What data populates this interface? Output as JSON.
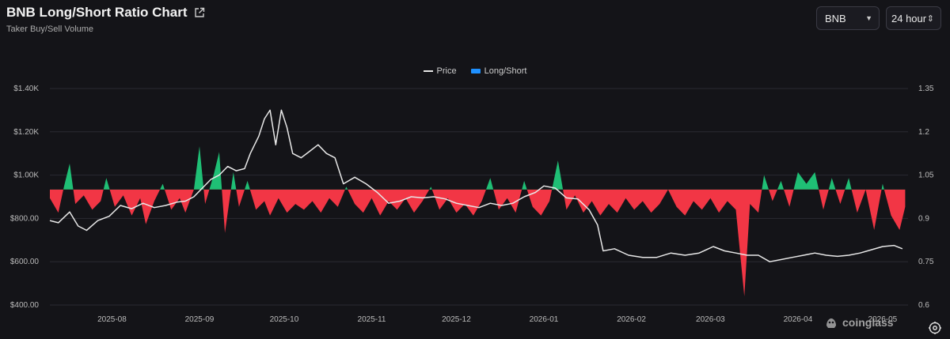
{
  "header": {
    "title": "BNB Long/Short Ratio Chart",
    "subtitle": "Taker Buy/Sell Volume",
    "symbol_select": "BNB",
    "interval_select": "24 hour"
  },
  "watermark": "coinglass",
  "icons": [
    "external-link-icon",
    "dropdown-caret-icon",
    "stepper-icon",
    "coinglass-logo-icon",
    "settings-icon"
  ],
  "colors": {
    "positive": "#1fbf75",
    "negative": "#f23645",
    "price": "#e8e8e8",
    "legend_ratio": "#1e90ff"
  },
  "chart_data": {
    "type": "area",
    "legend": [
      "Price",
      "Long/Short"
    ],
    "x_labels": [
      "2025-08",
      "2025-09",
      "2025-10",
      "2025-11",
      "2025-12",
      "2026-01",
      "2026-02",
      "2026-03",
      "2026-04",
      "2026-05"
    ],
    "y_left_labels": [
      "$1.40K",
      "$1.20K",
      "$1.00K",
      "$800.00",
      "$600.00",
      "$400.00"
    ],
    "y_right_labels": [
      "1.35",
      "1.2",
      "1.05",
      "0.9",
      "0.75",
      "0.6"
    ],
    "y_left_range": [
      400,
      1400
    ],
    "y_right_range": [
      0.6,
      1.35
    ],
    "ratio_baseline": 1.0,
    "x_range": [
      "2025-07-24",
      "2026-05-24"
    ],
    "series": [
      {
        "name": "Price",
        "points": [
          [
            "2025-07-24",
            790
          ],
          [
            "2025-07-27",
            780
          ],
          [
            "2025-07-31",
            830
          ],
          [
            "2025-08-03",
            765
          ],
          [
            "2025-08-06",
            745
          ],
          [
            "2025-08-10",
            790
          ],
          [
            "2025-08-14",
            810
          ],
          [
            "2025-08-18",
            860
          ],
          [
            "2025-08-22",
            845
          ],
          [
            "2025-08-26",
            870
          ],
          [
            "2025-08-30",
            850
          ],
          [
            "2025-09-03",
            860
          ],
          [
            "2025-09-07",
            875
          ],
          [
            "2025-09-10",
            880
          ],
          [
            "2025-09-13",
            900
          ],
          [
            "2025-09-16",
            940
          ],
          [
            "2025-09-19",
            980
          ],
          [
            "2025-09-22",
            1000
          ],
          [
            "2025-09-25",
            1040
          ],
          [
            "2025-09-28",
            1020
          ],
          [
            "2025-10-01",
            1030
          ],
          [
            "2025-10-03",
            1100
          ],
          [
            "2025-10-06",
            1180
          ],
          [
            "2025-10-08",
            1260
          ],
          [
            "2025-10-10",
            1300
          ],
          [
            "2025-10-12",
            1140
          ],
          [
            "2025-10-14",
            1300
          ],
          [
            "2025-10-16",
            1220
          ],
          [
            "2025-10-18",
            1100
          ],
          [
            "2025-10-21",
            1080
          ],
          [
            "2025-10-24",
            1110
          ],
          [
            "2025-10-27",
            1140
          ],
          [
            "2025-10-30",
            1100
          ],
          [
            "2025-11-02",
            1080
          ],
          [
            "2025-11-05",
            960
          ],
          [
            "2025-11-09",
            990
          ],
          [
            "2025-11-13",
            960
          ],
          [
            "2025-11-17",
            920
          ],
          [
            "2025-11-21",
            870
          ],
          [
            "2025-11-25",
            880
          ],
          [
            "2025-11-29",
            900
          ],
          [
            "2025-12-03",
            895
          ],
          [
            "2025-12-07",
            900
          ],
          [
            "2025-12-11",
            890
          ],
          [
            "2025-12-15",
            870
          ],
          [
            "2025-12-19",
            860
          ],
          [
            "2025-12-23",
            850
          ],
          [
            "2025-12-27",
            870
          ],
          [
            "2025-12-31",
            860
          ],
          [
            "2026-01-04",
            870
          ],
          [
            "2026-01-08",
            900
          ],
          [
            "2026-01-12",
            920
          ],
          [
            "2026-01-15",
            950
          ],
          [
            "2026-01-19",
            940
          ],
          [
            "2026-01-23",
            895
          ],
          [
            "2026-01-27",
            890
          ],
          [
            "2026-01-31",
            840
          ],
          [
            "2026-02-03",
            770
          ],
          [
            "2026-02-05",
            650
          ],
          [
            "2026-02-09",
            660
          ],
          [
            "2026-02-14",
            630
          ],
          [
            "2026-02-19",
            620
          ],
          [
            "2026-02-24",
            620
          ],
          [
            "2026-03-01",
            640
          ],
          [
            "2026-03-06",
            630
          ],
          [
            "2026-03-11",
            640
          ],
          [
            "2026-03-16",
            670
          ],
          [
            "2026-03-20",
            650
          ],
          [
            "2026-03-24",
            640
          ],
          [
            "2026-03-28",
            630
          ],
          [
            "2026-04-01",
            630
          ],
          [
            "2026-04-05",
            600
          ],
          [
            "2026-04-09",
            610
          ],
          [
            "2026-04-13",
            620
          ],
          [
            "2026-04-17",
            630
          ],
          [
            "2026-04-21",
            640
          ],
          [
            "2026-04-25",
            630
          ],
          [
            "2026-04-29",
            625
          ],
          [
            "2026-05-03",
            630
          ],
          [
            "2026-05-07",
            640
          ],
          [
            "2026-05-11",
            655
          ],
          [
            "2026-05-15",
            670
          ],
          [
            "2026-05-19",
            675
          ],
          [
            "2026-05-22",
            660
          ]
        ]
      },
      {
        "name": "Long/Short",
        "points": [
          [
            "2025-07-24",
            0.97
          ],
          [
            "2025-07-27",
            0.92
          ],
          [
            "2025-07-29",
            1.01
          ],
          [
            "2025-07-31",
            1.09
          ],
          [
            "2025-08-02",
            0.95
          ],
          [
            "2025-08-05",
            0.98
          ],
          [
            "2025-08-08",
            0.93
          ],
          [
            "2025-08-11",
            0.96
          ],
          [
            "2025-08-13",
            1.04
          ],
          [
            "2025-08-16",
            0.94
          ],
          [
            "2025-08-19",
            0.98
          ],
          [
            "2025-08-22",
            0.91
          ],
          [
            "2025-08-25",
            0.97
          ],
          [
            "2025-08-27",
            0.88
          ],
          [
            "2025-08-30",
            0.96
          ],
          [
            "2025-09-02",
            1.02
          ],
          [
            "2025-09-05",
            0.93
          ],
          [
            "2025-09-08",
            0.97
          ],
          [
            "2025-09-10",
            0.92
          ],
          [
            "2025-09-13",
            1.0
          ],
          [
            "2025-09-15",
            1.15
          ],
          [
            "2025-09-17",
            0.95
          ],
          [
            "2025-09-20",
            1.05
          ],
          [
            "2025-09-22",
            1.13
          ],
          [
            "2025-09-24",
            0.85
          ],
          [
            "2025-09-27",
            1.06
          ],
          [
            "2025-09-29",
            0.94
          ],
          [
            "2025-10-02",
            1.03
          ],
          [
            "2025-10-05",
            0.93
          ],
          [
            "2025-10-08",
            0.96
          ],
          [
            "2025-10-10",
            0.91
          ],
          [
            "2025-10-13",
            0.97
          ],
          [
            "2025-10-16",
            0.92
          ],
          [
            "2025-10-19",
            0.95
          ],
          [
            "2025-10-22",
            0.93
          ],
          [
            "2025-10-25",
            0.96
          ],
          [
            "2025-10-28",
            0.92
          ],
          [
            "2025-10-31",
            0.97
          ],
          [
            "2025-11-03",
            0.94
          ],
          [
            "2025-11-06",
            1.01
          ],
          [
            "2025-11-09",
            0.95
          ],
          [
            "2025-11-12",
            0.92
          ],
          [
            "2025-11-15",
            0.97
          ],
          [
            "2025-11-18",
            0.91
          ],
          [
            "2025-11-21",
            0.96
          ],
          [
            "2025-11-24",
            0.93
          ],
          [
            "2025-11-27",
            0.97
          ],
          [
            "2025-11-30",
            0.92
          ],
          [
            "2025-12-03",
            0.96
          ],
          [
            "2025-12-06",
            1.01
          ],
          [
            "2025-12-09",
            0.93
          ],
          [
            "2025-12-12",
            0.97
          ],
          [
            "2025-12-15",
            0.92
          ],
          [
            "2025-12-18",
            0.95
          ],
          [
            "2025-12-21",
            0.91
          ],
          [
            "2025-12-24",
            0.96
          ],
          [
            "2025-12-27",
            1.04
          ],
          [
            "2025-12-30",
            0.93
          ],
          [
            "2026-01-02",
            0.97
          ],
          [
            "2026-01-05",
            0.92
          ],
          [
            "2026-01-08",
            1.03
          ],
          [
            "2026-01-11",
            0.94
          ],
          [
            "2026-01-14",
            0.91
          ],
          [
            "2026-01-17",
            0.96
          ],
          [
            "2026-01-20",
            1.1
          ],
          [
            "2026-01-23",
            0.93
          ],
          [
            "2026-01-26",
            0.98
          ],
          [
            "2026-01-29",
            0.92
          ],
          [
            "2026-02-01",
            0.96
          ],
          [
            "2026-02-04",
            0.91
          ],
          [
            "2026-02-07",
            0.95
          ],
          [
            "2026-02-10",
            0.92
          ],
          [
            "2026-02-13",
            0.97
          ],
          [
            "2026-02-16",
            0.93
          ],
          [
            "2026-02-19",
            0.96
          ],
          [
            "2026-02-22",
            0.92
          ],
          [
            "2026-02-25",
            0.95
          ],
          [
            "2026-02-28",
            1.0
          ],
          [
            "2026-03-03",
            0.94
          ],
          [
            "2026-03-06",
            0.91
          ],
          [
            "2026-03-09",
            0.96
          ],
          [
            "2026-03-12",
            0.93
          ],
          [
            "2026-03-15",
            0.97
          ],
          [
            "2026-03-18",
            0.92
          ],
          [
            "2026-03-21",
            0.96
          ],
          [
            "2026-03-24",
            0.93
          ],
          [
            "2026-03-27",
            0.63
          ],
          [
            "2026-03-29",
            0.95
          ],
          [
            "2026-04-01",
            0.92
          ],
          [
            "2026-04-03",
            1.05
          ],
          [
            "2026-04-06",
            0.96
          ],
          [
            "2026-04-09",
            1.03
          ],
          [
            "2026-04-12",
            0.94
          ],
          [
            "2026-04-15",
            1.06
          ],
          [
            "2026-04-18",
            1.02
          ],
          [
            "2026-04-21",
            1.06
          ],
          [
            "2026-04-24",
            0.93
          ],
          [
            "2026-04-27",
            1.04
          ],
          [
            "2026-04-30",
            0.95
          ],
          [
            "2026-05-03",
            1.04
          ],
          [
            "2026-05-06",
            0.92
          ],
          [
            "2026-05-09",
            1.0
          ],
          [
            "2026-05-12",
            0.86
          ],
          [
            "2026-05-15",
            1.02
          ],
          [
            "2026-05-18",
            0.91
          ],
          [
            "2026-05-21",
            0.86
          ],
          [
            "2026-05-23",
            0.94
          ]
        ]
      }
    ]
  }
}
